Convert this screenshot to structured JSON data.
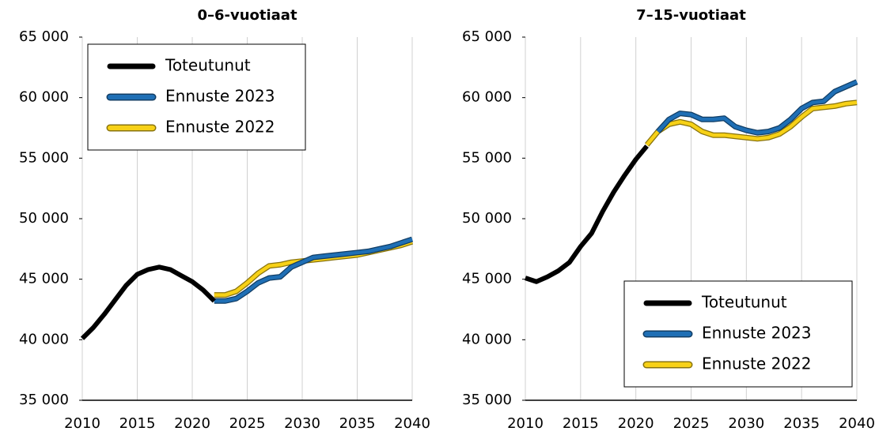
{
  "chart_data": [
    {
      "type": "line",
      "title": "0–6-vuotiaat",
      "x": [
        2010,
        2011,
        2012,
        2013,
        2014,
        2015,
        2016,
        2017,
        2018,
        2019,
        2020,
        2021,
        2022,
        2023,
        2024,
        2025,
        2026,
        2027,
        2028,
        2029,
        2030,
        2031,
        2032,
        2033,
        2034,
        2035,
        2036,
        2037,
        2038,
        2039,
        2040
      ],
      "series": [
        {
          "name": "Toteutunut",
          "color": "#000000",
          "values": [
            40100,
            41000,
            42100,
            43300,
            44500,
            45400,
            45800,
            46000,
            45800,
            45300,
            44800,
            44100,
            43200,
            null,
            null,
            null,
            null,
            null,
            null,
            null,
            null,
            null,
            null,
            null,
            null,
            null,
            null,
            null,
            null,
            null,
            null
          ]
        },
        {
          "name": "Ennuste 2023",
          "color": "#1f6fb5",
          "values": [
            null,
            null,
            null,
            null,
            null,
            null,
            null,
            null,
            null,
            null,
            null,
            null,
            43200,
            43200,
            43400,
            44000,
            44700,
            45100,
            45200,
            46000,
            46400,
            46800,
            46900,
            47000,
            47100,
            47200,
            47300,
            47500,
            47700,
            48000,
            48300
          ]
        },
        {
          "name": "Ennuste 2022",
          "color": "#f7d117",
          "values": [
            null,
            null,
            null,
            null,
            null,
            null,
            null,
            null,
            null,
            null,
            null,
            null,
            43700,
            43700,
            44000,
            44700,
            45500,
            46100,
            46200,
            46400,
            46500,
            46600,
            46700,
            46800,
            46900,
            47000,
            47200,
            47400,
            47600,
            47800,
            48100
          ]
        }
      ],
      "xlim": [
        2010,
        2040
      ],
      "xticks": [
        2010,
        2015,
        2020,
        2025,
        2030,
        2035,
        2040
      ],
      "ylim": [
        35000,
        65000
      ],
      "yticks": [
        {
          "value": 35000,
          "label": "35 000"
        },
        {
          "value": 40000,
          "label": "40 000"
        },
        {
          "value": 45000,
          "label": "45 000"
        },
        {
          "value": 50000,
          "label": "50 000"
        },
        {
          "value": 55000,
          "label": "55 000"
        },
        {
          "value": 60000,
          "label": "60 000"
        },
        {
          "value": 65000,
          "label": "65 000"
        }
      ],
      "grid": true,
      "legend": "upper left"
    },
    {
      "type": "line",
      "title": "7–15-vuotiaat",
      "x": [
        2010,
        2011,
        2012,
        2013,
        2014,
        2015,
        2016,
        2017,
        2018,
        2019,
        2020,
        2021,
        2022,
        2023,
        2024,
        2025,
        2026,
        2027,
        2028,
        2029,
        2030,
        2031,
        2032,
        2033,
        2034,
        2035,
        2036,
        2037,
        2038,
        2039,
        2040
      ],
      "series": [
        {
          "name": "Toteutunut",
          "color": "#000000",
          "values": [
            45100,
            44800,
            45200,
            45700,
            46400,
            47700,
            48800,
            50600,
            52200,
            53600,
            54900,
            56000,
            null,
            null,
            null,
            null,
            null,
            null,
            null,
            null,
            null,
            null,
            null,
            null,
            null,
            null,
            null,
            null,
            null,
            null,
            null
          ]
        },
        {
          "name": "Ennuste 2023",
          "color": "#1f6fb5",
          "values": [
            null,
            null,
            null,
            null,
            null,
            null,
            null,
            null,
            null,
            null,
            null,
            null,
            57200,
            58200,
            58700,
            58600,
            58200,
            58200,
            58300,
            57600,
            57300,
            57100,
            57200,
            57500,
            58200,
            59100,
            59600,
            59700,
            60500,
            60900,
            61300
          ]
        },
        {
          "name": "Ennuste 2022",
          "color": "#f7d117",
          "values": [
            null,
            null,
            null,
            null,
            null,
            null,
            null,
            null,
            null,
            null,
            null,
            56100,
            57200,
            57800,
            58000,
            57800,
            57200,
            56900,
            56900,
            56800,
            56700,
            56600,
            56700,
            57000,
            57600,
            58400,
            59100,
            59200,
            59300,
            59500,
            59600
          ]
        }
      ],
      "xlim": [
        2010,
        2040
      ],
      "xticks": [
        2010,
        2015,
        2020,
        2025,
        2030,
        2035,
        2040
      ],
      "ylim": [
        35000,
        65000
      ],
      "yticks": [
        {
          "value": 35000,
          "label": "35 000"
        },
        {
          "value": 40000,
          "label": "40 000"
        },
        {
          "value": 45000,
          "label": "45 000"
        },
        {
          "value": 50000,
          "label": "50 000"
        },
        {
          "value": 55000,
          "label": "55 000"
        },
        {
          "value": 60000,
          "label": "60 000"
        },
        {
          "value": 65000,
          "label": "65 000"
        }
      ],
      "grid": true,
      "legend": "lower right"
    }
  ]
}
